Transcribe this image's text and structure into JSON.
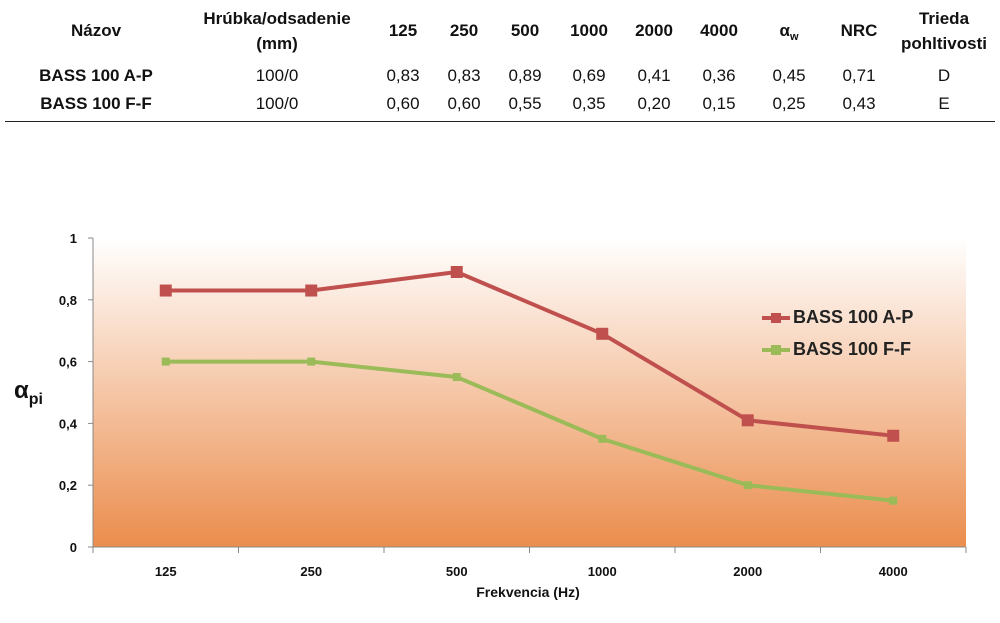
{
  "table": {
    "headers": {
      "name": "Názov",
      "thickness_line1": "Hrúbka/odsadenie",
      "thickness_line2": "(mm)",
      "f125": "125",
      "f250": "250",
      "f500": "500",
      "f1000": "1000",
      "f2000": "2000",
      "f4000": "4000",
      "alpha_w_symbol": "α",
      "alpha_w_sub": "w",
      "nrc": "NRC",
      "class_line1": "Trieda",
      "class_line2": "pohltivosti"
    },
    "rows": [
      {
        "name": "BASS 100 A-P",
        "thickness": "100/0",
        "v125": "0,83",
        "v250": "0,83",
        "v500": "0,89",
        "v1000": "0,69",
        "v2000": "0,41",
        "v4000": "0,36",
        "alpha_w": "0,45",
        "nrc": "0,71",
        "class": "D"
      },
      {
        "name": "BASS 100 F-F",
        "thickness": "100/0",
        "v125": "0,60",
        "v250": "0,60",
        "v500": "0,55",
        "v1000": "0,35",
        "v2000": "0,20",
        "v4000": "0,15",
        "alpha_w": "0,25",
        "nrc": "0,43",
        "class": "E"
      }
    ]
  },
  "chart_data": {
    "type": "line",
    "categories": [
      "125",
      "250",
      "500",
      "1000",
      "2000",
      "4000"
    ],
    "series": [
      {
        "name": "BASS 100 A-P",
        "values": [
          0.83,
          0.83,
          0.89,
          0.69,
          0.41,
          0.36
        ],
        "color": "#c0504d",
        "marker": "square"
      },
      {
        "name": "BASS 100 F-F",
        "values": [
          0.6,
          0.6,
          0.55,
          0.35,
          0.2,
          0.15
        ],
        "color": "#9bbb59",
        "marker": "square"
      }
    ],
    "xlabel": "Frekvencia (Hz)",
    "ylabel_symbol": "α",
    "ylabel_sub": "pi",
    "ylim": [
      0,
      1
    ],
    "yticks": [
      0,
      0.2,
      0.4,
      0.6,
      0.8,
      1
    ],
    "ytick_labels": [
      "0",
      "0,2",
      "0,4",
      "0,6",
      "0,8",
      "1"
    ],
    "legend_position": "right",
    "grid": false,
    "background": "gradient white to orange",
    "gradient_colors": [
      "#ffffff",
      "#eb8d4d"
    ]
  }
}
